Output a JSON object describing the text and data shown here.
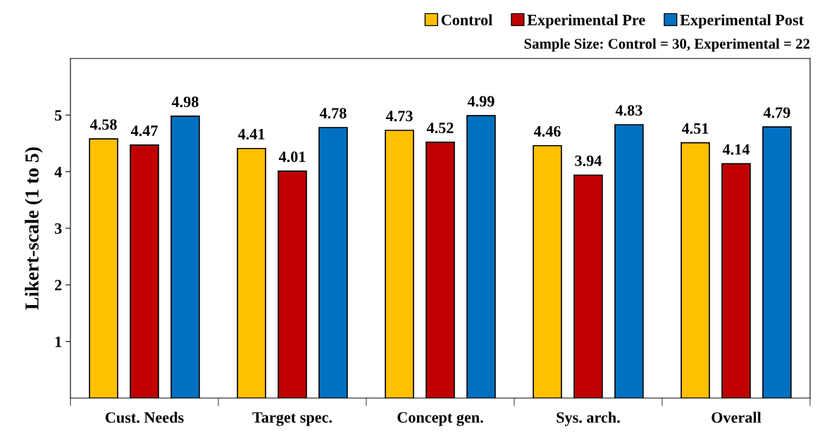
{
  "chart_data": {
    "type": "bar",
    "subtitle": "Sample Size: Control = 30, Experimental = 22",
    "ylabel": "Likert-scale (1 to 5)",
    "categories": [
      "Cust. Needs",
      "Target spec.",
      "Concept gen.",
      "Sys. arch.",
      "Overall"
    ],
    "series": [
      {
        "name": "Control",
        "color": "#ffc000",
        "values": [
          4.58,
          4.41,
          4.73,
          4.46,
          4.51
        ]
      },
      {
        "name": "Experimental Pre",
        "color": "#c00000",
        "values": [
          4.47,
          4.01,
          4.52,
          3.94,
          4.14
        ]
      },
      {
        "name": "Experimental Post",
        "color": "#0070c0",
        "values": [
          4.98,
          4.78,
          4.99,
          4.83,
          4.79
        ]
      }
    ],
    "ylim": [
      0,
      6
    ],
    "yticks": [
      1,
      2,
      3,
      4,
      5
    ],
    "grid": false,
    "legend": "top right",
    "data_labels": true
  }
}
